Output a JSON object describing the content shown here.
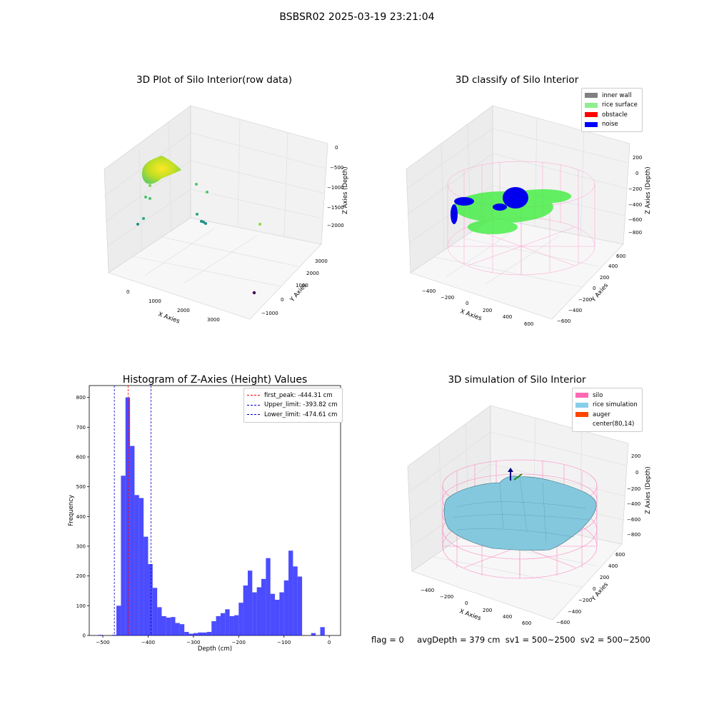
{
  "suptitle": "BSBSR02 2025-03-19 23:21:04",
  "panels": {
    "raw": {
      "title": "3D Plot of Silo Interior(row data)",
      "x_label": "X Axies",
      "y_label": "Y Axies",
      "z_label": "Z Axies (Depth)",
      "x_ticks": [
        "0",
        "1000",
        "2000",
        "3000"
      ],
      "y_ticks": [
        "−1000",
        "0",
        "1000",
        "2000",
        "3000"
      ],
      "z_ticks": [
        "0",
        "−500",
        "−1000",
        "−1500",
        "−2000"
      ]
    },
    "classify": {
      "title": "3D classify of Silo Interior",
      "x_label": "X Axies",
      "y_label": "Y Axies",
      "z_label": "Z Axies (Depth)",
      "x_ticks": [
        "−400",
        "−200",
        "0",
        "200",
        "400",
        "600"
      ],
      "y_ticks": [
        "−600",
        "−400",
        "−200",
        "0",
        "200",
        "400",
        "600"
      ],
      "z_ticks": [
        "200",
        "0",
        "−200",
        "−400",
        "−600",
        "−800"
      ],
      "legend": [
        {
          "label": "inner wall",
          "color": "#808080"
        },
        {
          "label": "rice surface",
          "color": "#90ee90"
        },
        {
          "label": "obstacle",
          "color": "#ff0000"
        },
        {
          "label": "noise",
          "color": "#0000ff"
        }
      ]
    },
    "simulation": {
      "title": "3D simulation of Silo Interior",
      "x_label": "X Axies",
      "y_label": "Y Axies",
      "z_label": "Z Axies (Depth)",
      "x_ticks": [
        "−400",
        "−200",
        "0",
        "200",
        "400",
        "600"
      ],
      "y_ticks": [
        "−600",
        "−400",
        "−200",
        "0",
        "200",
        "400",
        "600"
      ],
      "z_ticks": [
        "200",
        "0",
        "−200",
        "−400",
        "−600",
        "−800"
      ],
      "legend": [
        {
          "label": "silo",
          "color": "#ff69b4"
        },
        {
          "label": "rice simulation",
          "color": "#87ceeb"
        },
        {
          "label": "auger",
          "color": "#ff4500"
        },
        {
          "label": "center(80,14)",
          "color": "#ffffff"
        }
      ]
    }
  },
  "chart_data": {
    "type": "bar",
    "title": "Histogram of Z-Axies (Height) Values",
    "xlabel": "Depth (cm)",
    "ylabel": "Frequency",
    "xlim": [
      -530,
      25
    ],
    "ylim": [
      0,
      840
    ],
    "x_ticks": [
      -500,
      -400,
      -300,
      -200,
      -100,
      0
    ],
    "x_tick_labels": [
      "−500",
      "−400",
      "−300",
      "−200",
      "−100",
      "0"
    ],
    "y_ticks": [
      0,
      100,
      200,
      300,
      400,
      500,
      600,
      700,
      800
    ],
    "bar_color": "#0000ff",
    "bin_width": 10,
    "bins": [
      {
        "x": -505,
        "value": 2
      },
      {
        "x": -495,
        "value": 0
      },
      {
        "x": -485,
        "value": 0
      },
      {
        "x": -475,
        "value": 2
      },
      {
        "x": -465,
        "value": 100
      },
      {
        "x": -455,
        "value": 537
      },
      {
        "x": -445,
        "value": 800
      },
      {
        "x": -435,
        "value": 637
      },
      {
        "x": -425,
        "value": 472
      },
      {
        "x": -415,
        "value": 462
      },
      {
        "x": -405,
        "value": 332
      },
      {
        "x": -395,
        "value": 240
      },
      {
        "x": -385,
        "value": 160
      },
      {
        "x": -375,
        "value": 95
      },
      {
        "x": -365,
        "value": 65
      },
      {
        "x": -355,
        "value": 60
      },
      {
        "x": -345,
        "value": 62
      },
      {
        "x": -335,
        "value": 42
      },
      {
        "x": -325,
        "value": 38
      },
      {
        "x": -315,
        "value": 12
      },
      {
        "x": -305,
        "value": 6
      },
      {
        "x": -295,
        "value": 8
      },
      {
        "x": -285,
        "value": 10
      },
      {
        "x": -275,
        "value": 10
      },
      {
        "x": -265,
        "value": 12
      },
      {
        "x": -255,
        "value": 48
      },
      {
        "x": -245,
        "value": 65
      },
      {
        "x": -235,
        "value": 75
      },
      {
        "x": -225,
        "value": 88
      },
      {
        "x": -215,
        "value": 65
      },
      {
        "x": -205,
        "value": 68
      },
      {
        "x": -195,
        "value": 110
      },
      {
        "x": -185,
        "value": 168
      },
      {
        "x": -175,
        "value": 218
      },
      {
        "x": -165,
        "value": 145
      },
      {
        "x": -155,
        "value": 162
      },
      {
        "x": -145,
        "value": 190
      },
      {
        "x": -135,
        "value": 260
      },
      {
        "x": -125,
        "value": 140
      },
      {
        "x": -115,
        "value": 120
      },
      {
        "x": -105,
        "value": 145
      },
      {
        "x": -95,
        "value": 185
      },
      {
        "x": -85,
        "value": 285
      },
      {
        "x": -75,
        "value": 232
      },
      {
        "x": -65,
        "value": 198
      },
      {
        "x": -55,
        "value": 0
      },
      {
        "x": -45,
        "value": 0
      },
      {
        "x": -35,
        "value": 8
      },
      {
        "x": -25,
        "value": 0
      },
      {
        "x": -15,
        "value": 28
      }
    ],
    "vlines": [
      {
        "label": "first_peak: -444.31 cm",
        "x": -444.31,
        "color": "#ff0000"
      },
      {
        "label": "Upper_limit: -393.82 cm",
        "x": -393.82,
        "color": "#0000cc"
      },
      {
        "label": "Lower_limit: -474.61 cm",
        "x": -474.61,
        "color": "#0000cc"
      }
    ]
  },
  "footer": {
    "flag": "flag = 0",
    "avg_depth": "avgDepth = 379 cm",
    "sv1": "sv1 = 500~2500",
    "sv2": "sv2 = 500~2500"
  }
}
